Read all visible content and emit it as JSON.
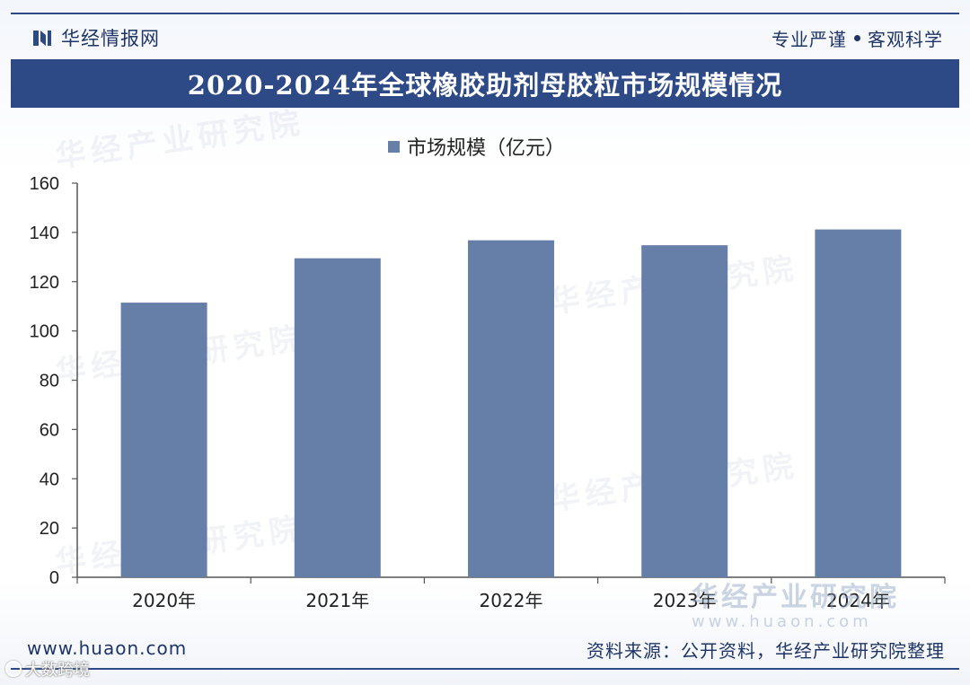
{
  "header": {
    "brand_name": "华经情报网",
    "slogan_left": "专业严谨",
    "slogan_right": "客观科学"
  },
  "watermarks": {
    "text": "华经产业研究院",
    "site": "华经产业研究院",
    "site_url": "www.huaon.com"
  },
  "footer": {
    "url": "www.huaon.com",
    "source": "资料来源：公开资料，华经产业研究院整理",
    "corner_mark": "大数跨境"
  },
  "colors": {
    "bar": "#667fa9",
    "title_bg": "#2d4a86",
    "axis": "#555555"
  },
  "chart_data": {
    "type": "bar",
    "title": "2020-2024年全球橡胶助剂母胶粒市场规模情况",
    "categories": [
      "2020年",
      "2021年",
      "2022年",
      "2023年",
      "2024年"
    ],
    "series": [
      {
        "name": "市场规模（亿元）",
        "values": [
          111.5,
          129.5,
          136.8,
          134.8,
          141.2
        ]
      }
    ],
    "xlabel": "",
    "ylabel": "",
    "ylim": [
      0,
      160
    ],
    "yticks": [
      0,
      20,
      40,
      60,
      80,
      100,
      120,
      140,
      160
    ],
    "legend_position": "top-center",
    "grid": false
  }
}
